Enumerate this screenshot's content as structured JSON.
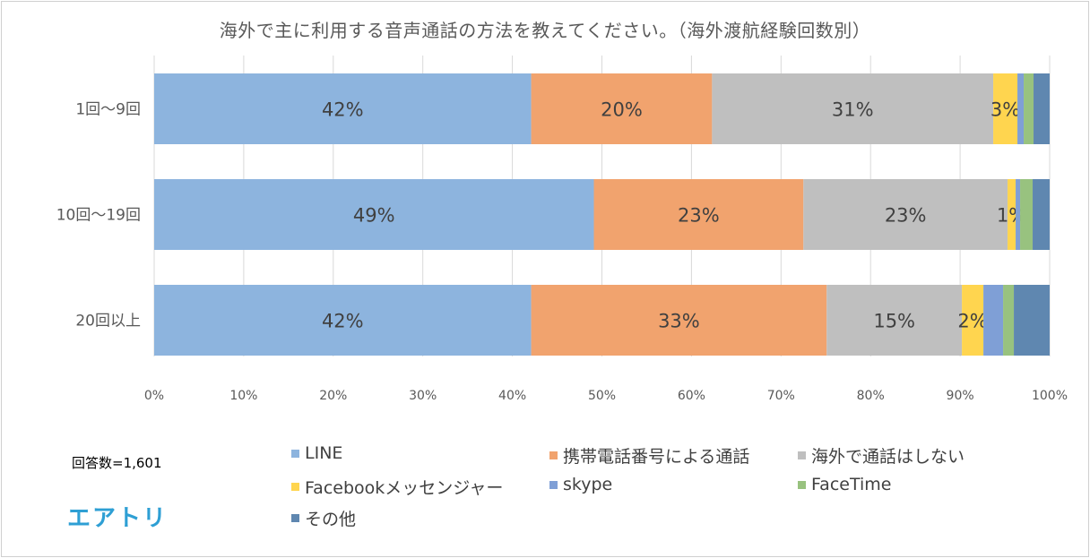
{
  "chart_data": {
    "type": "bar",
    "orientation": "horizontal",
    "stacked": "percent",
    "title": "海外で主に利用する音声通話の方法を教えてください。（海外渡航経験回数別）",
    "categories": [
      "1回～9回",
      "10回～19回",
      "20回以上"
    ],
    "series": [
      {
        "name": "LINE",
        "color": "#8db4de",
        "values": [
          42.1,
          49.1,
          42.1
        ],
        "labels": [
          "42%",
          "49%",
          "42%"
        ]
      },
      {
        "name": "携帯電話番号による通話",
        "color": "#f1a36e",
        "values": [
          20.2,
          23.4,
          33.0
        ],
        "labels": [
          "20%",
          "23%",
          "33%"
        ]
      },
      {
        "name": "海外で通話はしない",
        "color": "#bfbfbf",
        "values": [
          31.4,
          22.8,
          15.1
        ],
        "labels": [
          "31%",
          "23%",
          "15%"
        ]
      },
      {
        "name": "Facebookメッセンジャー",
        "color": "#ffd54f",
        "values": [
          2.7,
          0.9,
          2.4
        ],
        "labels": [
          "3%",
          "1%",
          "2%"
        ]
      },
      {
        "name": "skype",
        "color": "#7f9fd6",
        "values": [
          0.7,
          0.5,
          2.2
        ],
        "labels": [
          "",
          "",
          ""
        ]
      },
      {
        "name": "FaceTime",
        "color": "#98c27f",
        "values": [
          1.1,
          1.4,
          1.2
        ],
        "labels": [
          "",
          "",
          ""
        ]
      },
      {
        "name": "その他",
        "color": "#5f87b0",
        "values": [
          1.8,
          1.9,
          4.0
        ],
        "labels": [
          "",
          "",
          ""
        ]
      }
    ],
    "xlim": [
      0,
      100
    ],
    "xticks": [
      "0%",
      "10%",
      "20%",
      "30%",
      "40%",
      "50%",
      "60%",
      "70%",
      "80%",
      "90%",
      "100%"
    ],
    "grid": true,
    "legend_position": "bottom"
  },
  "note": "回答数=1,601",
  "logo": "エアトリ"
}
